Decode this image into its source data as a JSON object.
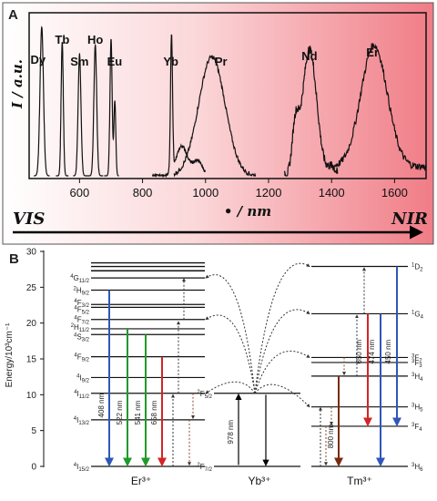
{
  "panel_a": {
    "letter": "A",
    "y_axis_label": "I / a.u.",
    "x_axis_label": "• / nm",
    "x_ticks": [
      "600",
      "800",
      "1000",
      "1200",
      "1400",
      "1600"
    ],
    "left_region": "VIS",
    "right_region": "NIR",
    "peaks": [
      {
        "label": "Dy",
        "center_nm": 480
      },
      {
        "label": "Tb",
        "center_nm": 545
      },
      {
        "label": "Sm",
        "center_nm": 600
      },
      {
        "label": "Ho",
        "center_nm": 650
      },
      {
        "label": "Eu",
        "center_nm": 700
      },
      {
        "label": "Yb",
        "center_nm": 890
      },
      {
        "label": "Pr",
        "center_nm": 1020
      },
      {
        "label": "Nd",
        "center_nm": 1330
      },
      {
        "label": "Er",
        "center_nm": 1530
      }
    ]
  },
  "panel_b": {
    "letter": "B",
    "y_axis_label": "Energy/10³cm⁻¹",
    "y_ticks": [
      "0",
      "5",
      "10",
      "15",
      "20",
      "25",
      "30"
    ],
    "ions": {
      "er": "Er³⁺",
      "yb": "Yb³⁺",
      "tm": "Tm³⁺"
    },
    "er_levels": [
      {
        "label": "4I15/2",
        "energy": 0
      },
      {
        "label": "4I13/2",
        "energy": 6.5
      },
      {
        "label": "4I11/2",
        "energy": 10.2
      },
      {
        "label": "4I9/2",
        "energy": 12.4
      },
      {
        "label": "4F9/2",
        "energy": 15.3
      },
      {
        "label": "4S3/2",
        "energy": 18.4
      },
      {
        "label": "2H11/2",
        "energy": 19.2
      },
      {
        "label": "4F7/2",
        "energy": 20.5
      },
      {
        "label": "4F5/2",
        "energy": 22.2
      },
      {
        "label": "4F3/2",
        "energy": 22.6
      },
      {
        "label": "4G11/2",
        "energy": 26.3
      },
      {
        "label": "2H9/2",
        "energy": 24.6
      }
    ],
    "yb_levels": [
      {
        "label": "2F7/2",
        "energy": 0
      },
      {
        "label": "2F5/2",
        "energy": 10.2
      }
    ],
    "tm_levels": [
      {
        "label": "3H6",
        "energy": 0
      },
      {
        "label": "3F4",
        "energy": 5.6
      },
      {
        "label": "3H5",
        "energy": 8.3
      },
      {
        "label": "3H4",
        "energy": 12.6
      },
      {
        "label": "3F3",
        "energy": 14.5
      },
      {
        "label": "3F2",
        "energy": 15.2
      },
      {
        "label": "1G4",
        "energy": 21.3
      },
      {
        "label": "1D2",
        "energy": 27.9
      }
    ],
    "transitions": [
      {
        "label": "408 nm",
        "color": "#2f56b8"
      },
      {
        "label": "522 nm",
        "color": "#1f9a2a"
      },
      {
        "label": "541 nm",
        "color": "#1f9a2a"
      },
      {
        "label": "658 nm",
        "color": "#d42424"
      },
      {
        "label": "978 nm",
        "color": "#000000"
      },
      {
        "label": "650 nm",
        "color": "#d42424"
      },
      {
        "label": "474 nm",
        "color": "#2f56b8"
      },
      {
        "label": "450 nm",
        "color": "#2f56b8"
      },
      {
        "label": "800 nm",
        "color": "#7a2a10"
      }
    ]
  }
}
